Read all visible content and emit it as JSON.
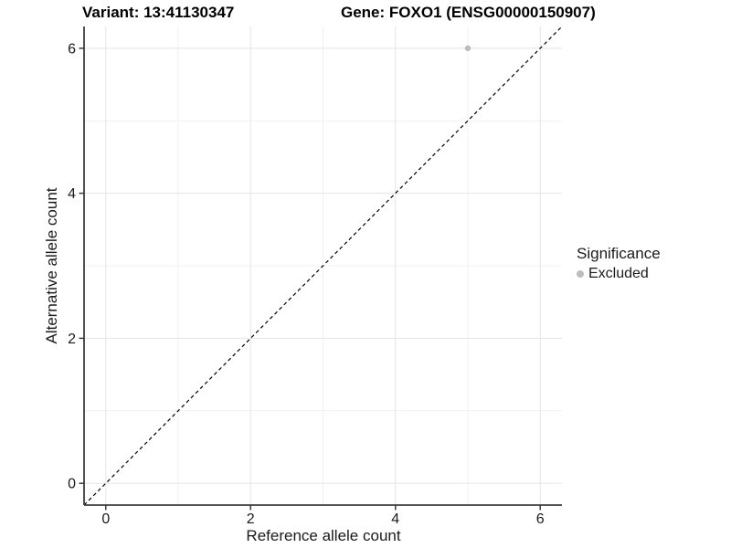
{
  "chart_data": {
    "type": "scatter",
    "title_left": "Variant: 13:41130347",
    "title_right": "Gene: FOXO1 (ENSG00000150907)",
    "xlabel": "Reference allele count",
    "ylabel": "Alternative allele count",
    "xlim": [
      -0.3,
      6.3
    ],
    "ylim": [
      -0.3,
      6.3
    ],
    "xticks": [
      0,
      2,
      4,
      6
    ],
    "yticks": [
      0,
      2,
      4,
      6
    ],
    "minor_xticks": [
      1,
      3,
      5
    ],
    "minor_yticks": [
      1,
      3,
      5
    ],
    "grid": true,
    "points": [
      {
        "x": 5,
        "y": 6,
        "series": "Excluded"
      }
    ],
    "abline": {
      "slope": 1,
      "intercept": 0,
      "style": "dashed"
    },
    "legend": {
      "title": "Significance",
      "position": "right",
      "entries": [
        {
          "label": "Excluded",
          "color": "#bdbdbd"
        }
      ]
    },
    "colors": {
      "point": "#bdbdbd",
      "grid_major": "#e4e4e4",
      "grid_minor": "#f1f1f1",
      "axis_line": "#3c3c3c",
      "tick_text": "#1a1a1a",
      "abline": "#000000",
      "background": "#ffffff"
    }
  }
}
